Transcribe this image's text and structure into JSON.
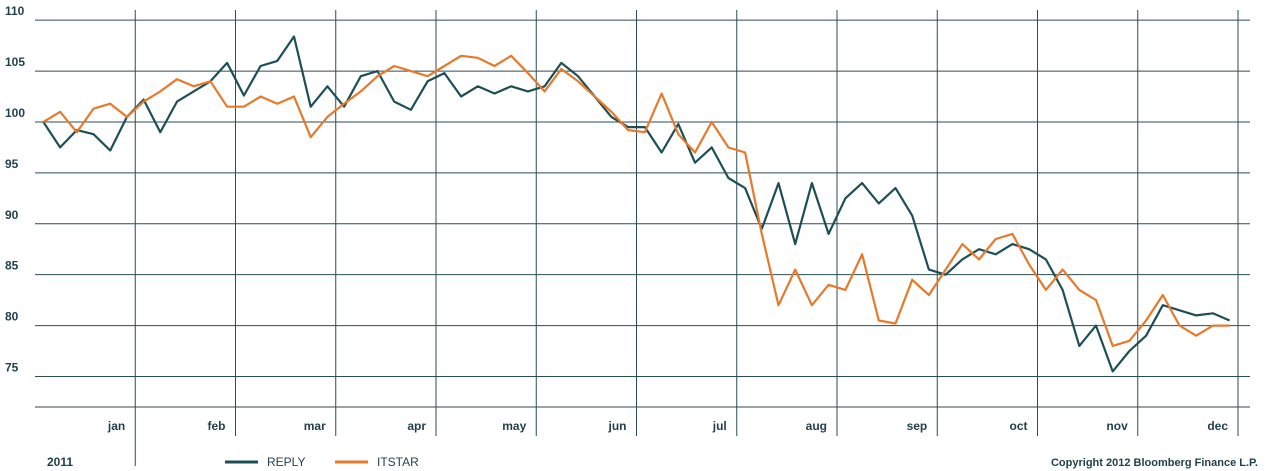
{
  "chart_data": {
    "type": "line",
    "categories": [
      null,
      null,
      null,
      null,
      null,
      "jan",
      null,
      null,
      null,
      null,
      null,
      "feb",
      null,
      null,
      null,
      null,
      null,
      "mar",
      null,
      null,
      null,
      null,
      null,
      "apr",
      null,
      null,
      null,
      null,
      null,
      "may",
      null,
      null,
      null,
      null,
      null,
      "jun",
      null,
      null,
      null,
      null,
      null,
      "jul",
      null,
      null,
      null,
      null,
      null,
      "aug",
      null,
      null,
      null,
      null,
      null,
      "sep",
      null,
      null,
      null,
      null,
      null,
      "oct",
      null,
      null,
      null,
      null,
      null,
      "nov",
      null,
      null,
      null,
      null,
      null,
      "dec"
    ],
    "series": [
      {
        "name": "REPLY",
        "color": "#1c4f56",
        "values": [
          100,
          97.5,
          99.2,
          98.8,
          97.2,
          100.5,
          102.2,
          99,
          102,
          103,
          104,
          105.8,
          102.6,
          105.5,
          106,
          108.4,
          101.5,
          103.5,
          101.5,
          104.5,
          105,
          102,
          101.2,
          104,
          104.8,
          102.5,
          103.5,
          102.8,
          103.5,
          103,
          103.5,
          105.8,
          104.5,
          102.5,
          100.5,
          99.5,
          99.5,
          97,
          99.8,
          96,
          97.5,
          94.5,
          93.5,
          89.5,
          94,
          88,
          94,
          89,
          92.5,
          94,
          92,
          93.5,
          90.8,
          85.5,
          85,
          86.5,
          87.5,
          87,
          88,
          87.5,
          86.5,
          83.5,
          78,
          80,
          75.5,
          77.5,
          79,
          82,
          81.5,
          81,
          81.2,
          80.5
        ]
      },
      {
        "name": "ITSTAR",
        "color": "#e8792a",
        "values": [
          100,
          101,
          99,
          101.3,
          101.8,
          100.5,
          102,
          103,
          104.2,
          103.5,
          104,
          101.5,
          101.5,
          102.5,
          101.8,
          102.5,
          98.5,
          100.5,
          101.8,
          103,
          104.5,
          105.5,
          105,
          104.5,
          105.5,
          106.5,
          106.3,
          105.5,
          106.5,
          104.8,
          103,
          105.2,
          104,
          102.5,
          101,
          99.2,
          99,
          102.8,
          98.8,
          97,
          100,
          97.5,
          97,
          89,
          82,
          85.5,
          82,
          84,
          83.5,
          87,
          80.5,
          80.2,
          84.5,
          83,
          85.5,
          88,
          86.5,
          88.5,
          89,
          86,
          83.5,
          85.5,
          83.5,
          82.5,
          78,
          78.5,
          80.5,
          83,
          80,
          79,
          80,
          80
        ]
      }
    ],
    "ylim": [
      72,
      111
    ],
    "yticks": [
      75,
      80,
      85,
      90,
      95,
      100,
      105,
      110
    ],
    "grid": true,
    "x_label": "2011",
    "footnote": "Copyright 2012 Bloomberg Finance L.P.",
    "legend": "bottom"
  }
}
